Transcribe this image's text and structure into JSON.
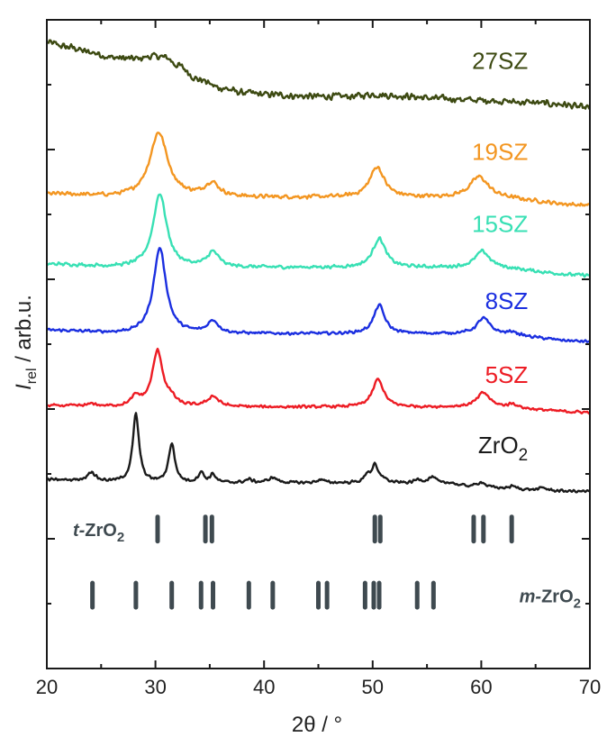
{
  "chart_data": {
    "type": "line",
    "xlabel": "2θ / °",
    "ylabel_main": "I",
    "ylabel_sub": "rel",
    "ylabel_rest": " / arb.u.",
    "xlim": [
      20,
      70
    ],
    "xticks": [
      20,
      30,
      40,
      50,
      60,
      70
    ],
    "ylim": [
      0,
      100
    ],
    "series": [
      {
        "name": "27SZ",
        "color": "#3d4a12",
        "offset": 87,
        "noise": 0.6,
        "points": [
          [
            20,
            9.5
          ],
          [
            22,
            8.8
          ],
          [
            24,
            8
          ],
          [
            26,
            7.2
          ],
          [
            28,
            7
          ],
          [
            30,
            7.4
          ],
          [
            31,
            7.2
          ],
          [
            32,
            6
          ],
          [
            34,
            3.8
          ],
          [
            36,
            2.5
          ],
          [
            38,
            1.8
          ],
          [
            40,
            1.5
          ],
          [
            44,
            1.2
          ],
          [
            48,
            1.2
          ],
          [
            50,
            1.5
          ],
          [
            52,
            1.3
          ],
          [
            56,
            0.9
          ],
          [
            60,
            0.6
          ],
          [
            64,
            0.3
          ],
          [
            67,
            0
          ],
          [
            70,
            -0.6
          ]
        ],
        "peaks": []
      },
      {
        "name": "19SZ",
        "color": "#f39621",
        "offset": 72.6,
        "noise": 0.35,
        "points": [
          [
            20,
            0.5
          ],
          [
            28,
            0
          ],
          [
            40,
            0
          ],
          [
            60,
            0
          ],
          [
            70,
            -1.2
          ]
        ],
        "peaks": [
          [
            30.3,
            10,
            1.0
          ],
          [
            35.2,
            2.1,
            0.8
          ],
          [
            50.4,
            4.7,
            0.8
          ],
          [
            59.8,
            3.2,
            1.0
          ]
        ]
      },
      {
        "name": "15SZ",
        "color": "#38e0b4",
        "offset": 61.8,
        "noise": 0.3,
        "points": [
          [
            20,
            0.5
          ],
          [
            28,
            0
          ],
          [
            40,
            0
          ],
          [
            60,
            0
          ],
          [
            70,
            -1.2
          ]
        ],
        "peaks": [
          [
            30.4,
            11.4,
            0.75
          ],
          [
            35.3,
            2.3,
            0.65
          ],
          [
            50.6,
            4.5,
            0.7
          ],
          [
            60.1,
            2.5,
            0.8
          ]
        ]
      },
      {
        "name": "8SZ",
        "color": "#1b2fe0",
        "offset": 51.6,
        "noise": 0.25,
        "points": [
          [
            20,
            0.5
          ],
          [
            28,
            0
          ],
          [
            40,
            0
          ],
          [
            60,
            0
          ],
          [
            70,
            -1.2
          ]
        ],
        "peaks": [
          [
            30.4,
            13.2,
            0.7
          ],
          [
            35.3,
            1.9,
            0.6
          ],
          [
            50.6,
            4.4,
            0.6
          ],
          [
            60.2,
            2.4,
            0.7
          ],
          [
            62.9,
            0.5,
            0.5
          ]
        ]
      },
      {
        "name": "5SZ",
        "color": "#ed1c24",
        "offset": 40.3,
        "noise": 0.25,
        "points": [
          [
            20,
            0.2
          ],
          [
            28,
            0
          ],
          [
            40,
            0
          ],
          [
            60,
            0
          ],
          [
            70,
            -0.8
          ]
        ],
        "peaks": [
          [
            24.2,
            0.4,
            0.4
          ],
          [
            28.2,
            1.4,
            0.5
          ],
          [
            30.2,
            8.6,
            0.6
          ],
          [
            31.5,
            0.9,
            0.4
          ],
          [
            35.3,
            1.6,
            0.6
          ],
          [
            50.5,
            4.3,
            0.6
          ],
          [
            60.2,
            2.2,
            0.7
          ],
          [
            62.9,
            0.6,
            0.5
          ]
        ]
      },
      {
        "name": "ZrO2",
        "color": "#1a1a1a",
        "offset": 28.6,
        "noise": 0.25,
        "points": [
          [
            20,
            0.5
          ],
          [
            30,
            0
          ],
          [
            50,
            0
          ],
          [
            70,
            -1.3
          ]
        ],
        "peaks": [
          [
            24.1,
            1.4,
            0.4
          ],
          [
            28.2,
            10.5,
            0.35
          ],
          [
            31.5,
            6,
            0.35
          ],
          [
            34.2,
            1.6,
            0.3
          ],
          [
            35.3,
            1.3,
            0.3
          ],
          [
            38.6,
            0.5,
            0.4
          ],
          [
            40.8,
            0.8,
            0.5
          ],
          [
            45.2,
            0.5,
            0.4
          ],
          [
            49.5,
            1.2,
            0.3
          ],
          [
            50.2,
            2.6,
            0.35
          ],
          [
            51.0,
            0.6,
            0.3
          ],
          [
            54.2,
            0.6,
            0.4
          ],
          [
            55.5,
            1.1,
            0.5
          ],
          [
            57.2,
            0.4,
            0.4
          ],
          [
            60.0,
            0.8,
            0.4
          ],
          [
            62.9,
            0.4,
            0.4
          ],
          [
            65.7,
            0.4,
            0.4
          ]
        ]
      }
    ],
    "labels": [
      {
        "text": "27SZ",
        "sub": "",
        "color": "#3d4a12",
        "anchor": [
          64.3,
          92.4
        ]
      },
      {
        "text": "19SZ",
        "sub": "",
        "color": "#f39621",
        "anchor": [
          64.3,
          78.4
        ]
      },
      {
        "text": "15SZ",
        "sub": "",
        "color": "#38e0b4",
        "anchor": [
          64.3,
          67.3
        ]
      },
      {
        "text": "8SZ",
        "sub": "",
        "color": "#1b2fe0",
        "anchor": [
          64.3,
          55.4
        ]
      },
      {
        "text": "5SZ",
        "sub": "",
        "color": "#ed1c24",
        "anchor": [
          64.3,
          44.0
        ]
      },
      {
        "text": "ZrO",
        "sub": "2",
        "color": "#1a1a1a",
        "anchor": [
          64.3,
          33.2
        ]
      }
    ],
    "reference_patterns": [
      {
        "name_prefix": "t-",
        "name_main": "ZrO",
        "name_sub": "2",
        "color": "#3f4a50",
        "row_y": 21.5,
        "label_anchor": [
          22.4,
          21.5
        ],
        "positions": [
          30.2,
          34.6,
          35.2,
          50.2,
          50.7,
          59.3,
          60.2,
          62.8
        ]
      },
      {
        "name_prefix": "m-",
        "name_main": "ZrO",
        "name_sub": "2",
        "color": "#3f4a50",
        "row_y": 11.3,
        "label_anchor": [
          63.5,
          11.3
        ],
        "positions": [
          24.2,
          28.2,
          31.5,
          34.2,
          35.3,
          38.6,
          40.8,
          45.0,
          45.8,
          49.3,
          50.1,
          50.6,
          54.1,
          55.6
        ]
      }
    ]
  }
}
